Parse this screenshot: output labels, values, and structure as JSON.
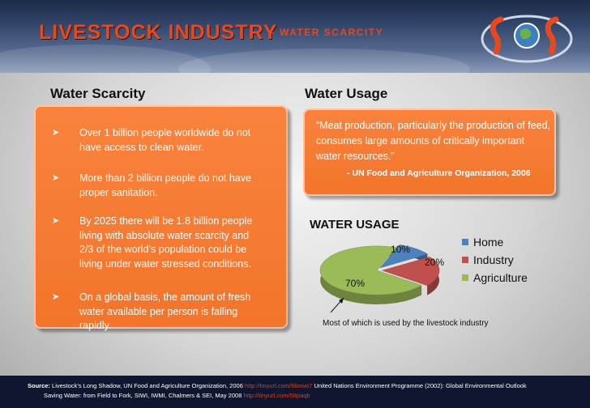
{
  "header": {
    "title_main": "LIVESTOCK INDUSTRY",
    "title_sub": "– WATER SCARCITY",
    "logo_text": "SOS"
  },
  "left": {
    "heading": "Water Scarcity",
    "bullets": [
      "Over 1 billion people worldwide do not have access to clean water.",
      "More than 2 billion people do not have proper sanitation.",
      "By 2025 there will be 1.8 billion people living with absolute water scarcity and 2/3 of the world’s population could be living under water stressed conditions.",
      "On a global basis, the amount of fresh water available per person is falling rapidly."
    ]
  },
  "right": {
    "heading": "Water Usage",
    "quote": "“Meat production, particularly the production of feed, consumes large amounts of critically important water resources.”",
    "attribution": "- UN Food and Agriculture Organization, 2006"
  },
  "chart_data": {
    "type": "pie",
    "title": "WATER USAGE",
    "categories": [
      "Home",
      "Industry",
      "Agriculture"
    ],
    "values": [
      10,
      20,
      70
    ],
    "labels": [
      "10%",
      "20%",
      "70%"
    ],
    "colors": [
      "#4f81bd",
      "#c0504d",
      "#9bbb59"
    ],
    "legend_position": "right",
    "annotation": "Most of which is used by the livestock industry"
  },
  "source": {
    "label": "Source:",
    "line1_a": "Livestock’s Long Shadow, UN Food and Agriculture Organization, 2006",
    "line1_link": "http://tinyurl.com/6bowo7",
    "line1_b": "United Nations Environment Programme (2002): Global Environmental Outlook",
    "line2_a": "Saving Water: from Field to Fork, SIWI, IWMI, Chalmers & SEI, May 2008",
    "line2_link": "http://tinyurl.com/58paqb"
  }
}
